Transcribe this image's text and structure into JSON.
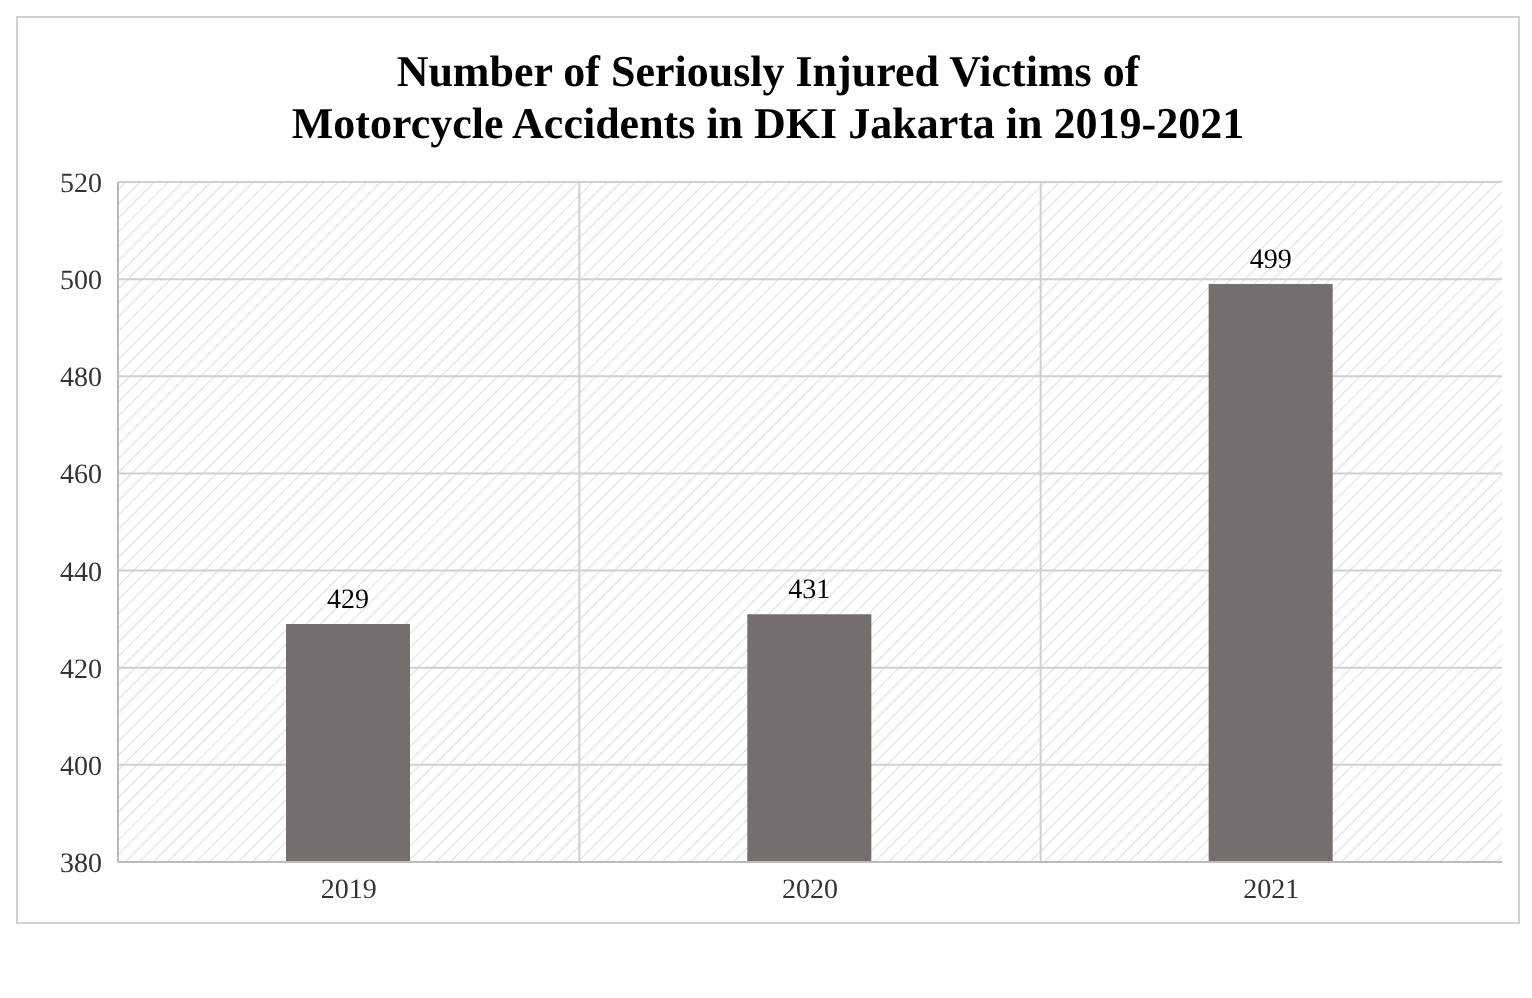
{
  "chart_data": {
    "type": "bar",
    "title": "Number of Seriously Injured Victims of Motorcycle Accidents in DKI Jakarta in 2019-2021",
    "categories": [
      "2019",
      "2020",
      "2021"
    ],
    "values": [
      429,
      431,
      499
    ],
    "color": "#756e6d",
    "ylim": [
      380,
      520
    ],
    "yticks": [
      380,
      400,
      420,
      440,
      460,
      480,
      500,
      520
    ],
    "grid": true,
    "data_labels": true
  }
}
